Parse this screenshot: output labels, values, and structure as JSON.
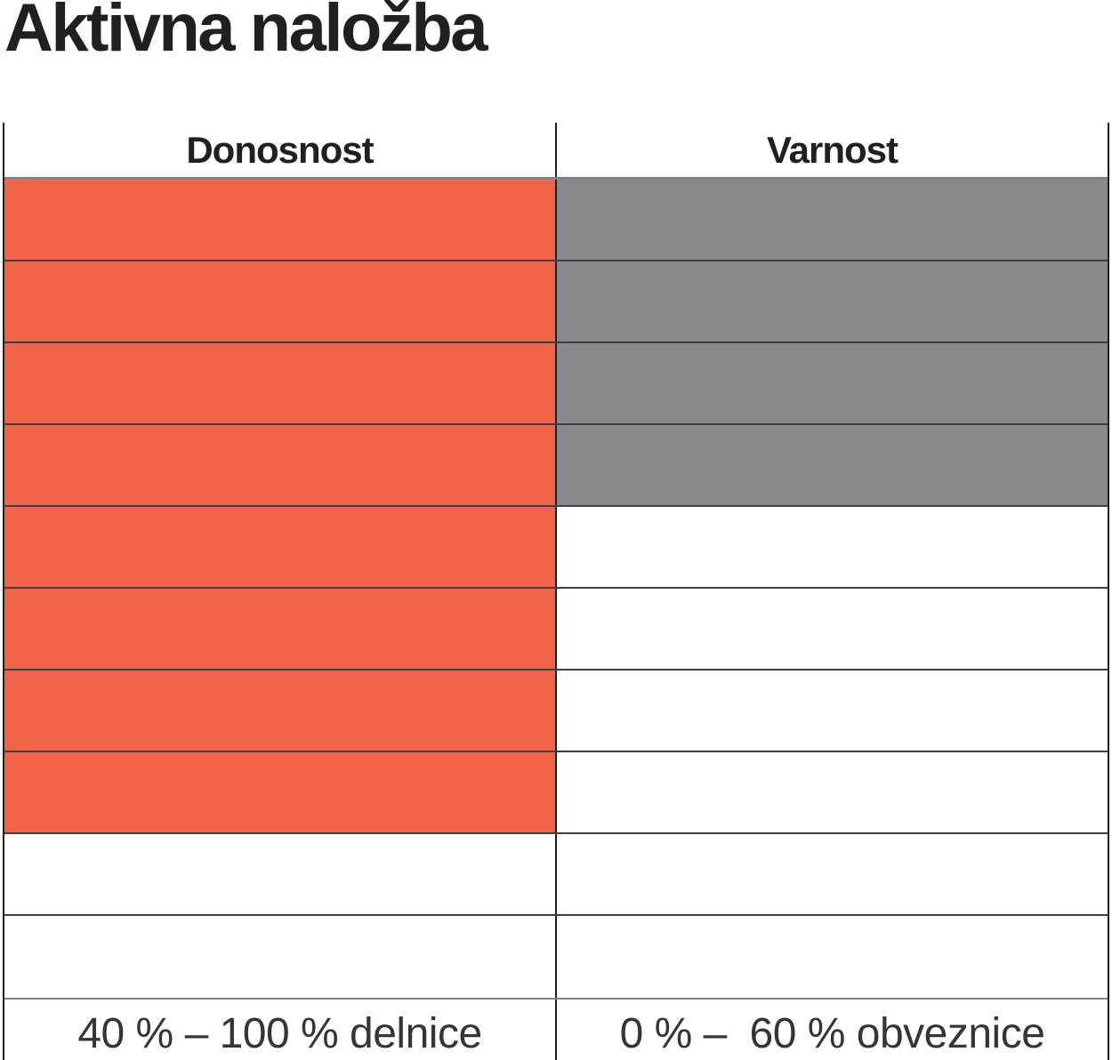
{
  "title": "Aktivna naložba",
  "colors": {
    "donosnost_fill": "#F2654A",
    "varnost_fill": "#898A8D",
    "grid_dark": "#3E3D40",
    "grid_gray": "#808285",
    "border_black": "#231F20",
    "text": "#231F20"
  },
  "chart_data": {
    "type": "table",
    "title": "Aktivna naložba",
    "total_rows": 10,
    "columns": [
      {
        "header": "Donosnost",
        "filled_cells": 8,
        "total_cells": 10,
        "fill_color": "#F2654A",
        "range_label": "40 % – 100 % delnice"
      },
      {
        "header": "Varnost",
        "filled_cells": 4,
        "total_cells": 10,
        "fill_color": "#898A8D",
        "range_label": "0 % –  60 % obveznice"
      }
    ],
    "layout": {
      "legend": "none",
      "grid": "on",
      "note": "filled cells counted from top row downward"
    }
  }
}
